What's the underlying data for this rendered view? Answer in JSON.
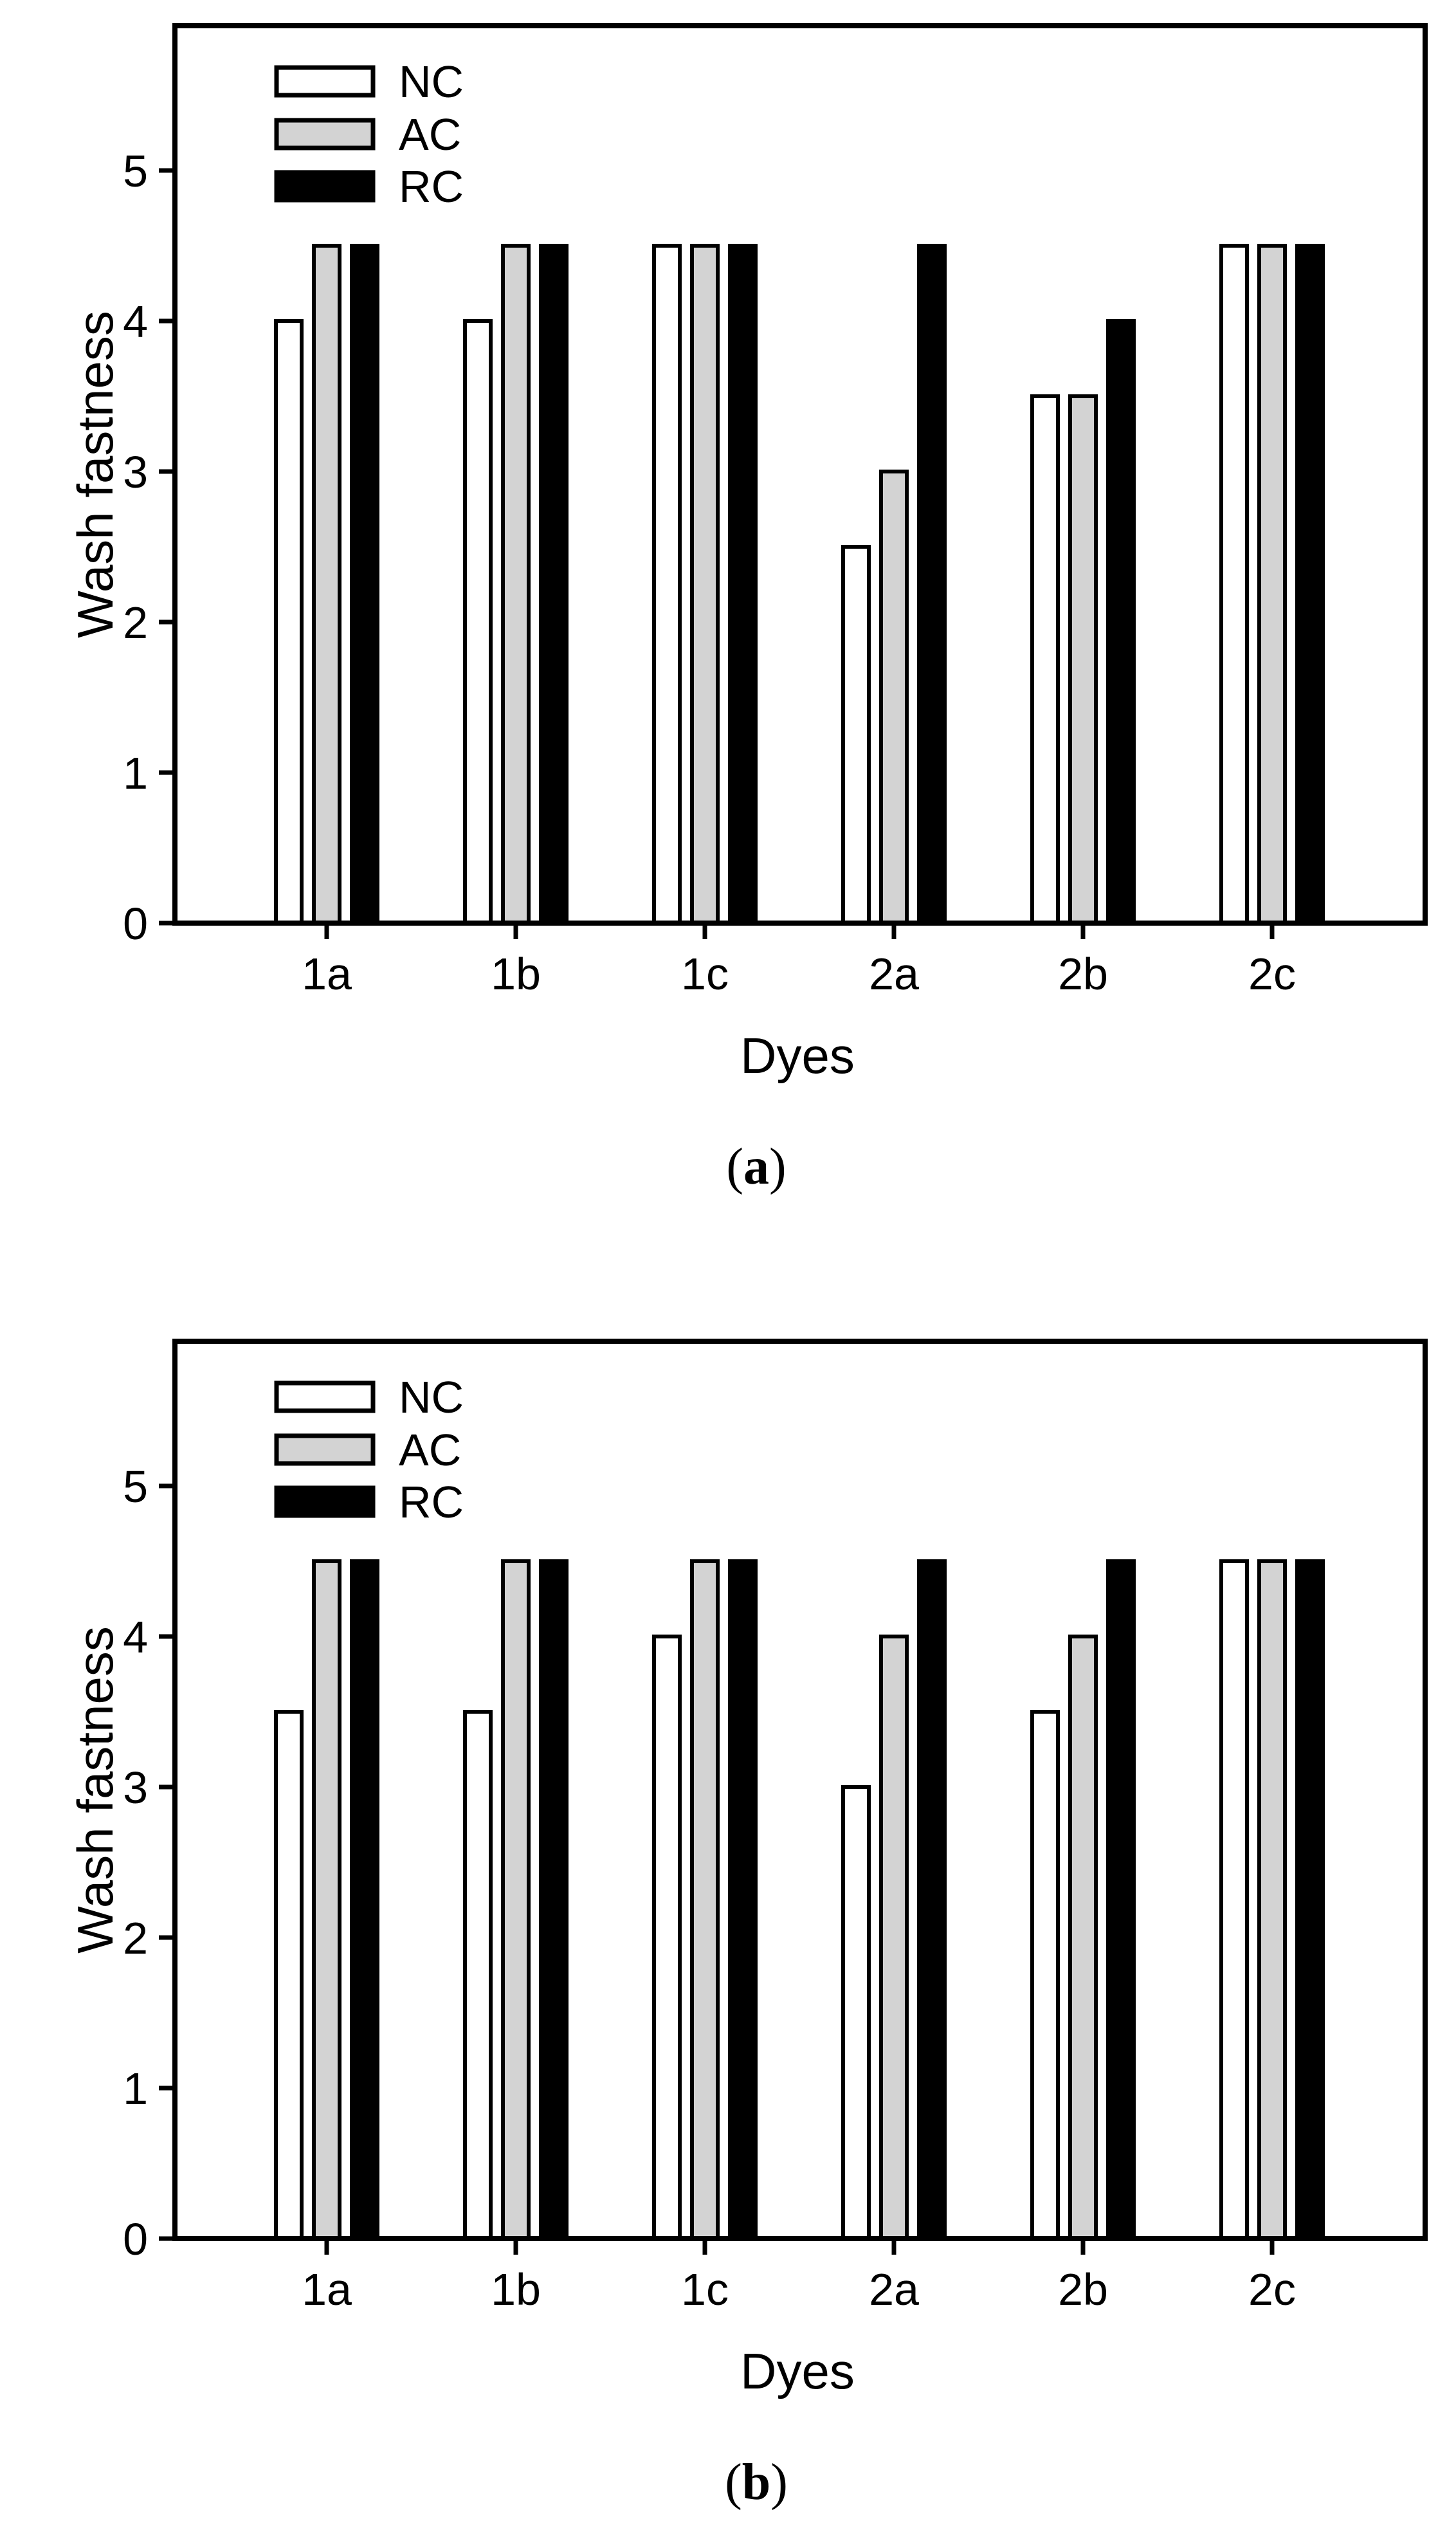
{
  "page": {
    "background": "#ffffff"
  },
  "figures": [
    {
      "caption": {
        "open": "(",
        "letter": "a",
        "close": ")"
      }
    },
    {
      "caption": {
        "open": "(",
        "letter": "b",
        "close": ")"
      }
    }
  ],
  "chart_data": [
    {
      "type": "bar",
      "title": "",
      "xlabel": "Dyes",
      "ylabel": "Wash fastness",
      "categories": [
        "1a",
        "1b",
        "1c",
        "2a",
        "2b",
        "2c"
      ],
      "series": [
        {
          "name": "NC",
          "color": "#ffffff",
          "values": [
            4.0,
            4.0,
            4.5,
            2.5,
            3.5,
            4.5
          ]
        },
        {
          "name": "AC",
          "color": "#d3d3d3",
          "values": [
            4.5,
            4.5,
            4.5,
            3.0,
            3.5,
            4.5
          ]
        },
        {
          "name": "RC",
          "color": "#000000",
          "values": [
            4.5,
            4.5,
            4.5,
            4.5,
            4.0,
            4.5
          ]
        }
      ],
      "ylim": [
        0,
        5.95
      ],
      "yticks": [
        0,
        1,
        2,
        3,
        4,
        5
      ],
      "legend_position": "upper-left-inside",
      "grid": false,
      "axis_color": "#000000",
      "bar_outline_color": "#000000"
    },
    {
      "type": "bar",
      "title": "",
      "xlabel": "Dyes",
      "ylabel": "Wash fastness",
      "categories": [
        "1a",
        "1b",
        "1c",
        "2a",
        "2b",
        "2c"
      ],
      "series": [
        {
          "name": "NC",
          "color": "#ffffff",
          "values": [
            3.5,
            3.5,
            4.0,
            3.0,
            3.5,
            4.5
          ]
        },
        {
          "name": "AC",
          "color": "#d3d3d3",
          "values": [
            4.5,
            4.5,
            4.5,
            4.0,
            4.0,
            4.5
          ]
        },
        {
          "name": "RC",
          "color": "#000000",
          "values": [
            4.5,
            4.5,
            4.5,
            4.5,
            4.5,
            4.5
          ]
        }
      ],
      "ylim": [
        0,
        5.95
      ],
      "yticks": [
        0,
        1,
        2,
        3,
        4,
        5
      ],
      "legend_position": "upper-left-inside",
      "grid": false,
      "axis_color": "#000000",
      "bar_outline_color": "#000000"
    }
  ]
}
